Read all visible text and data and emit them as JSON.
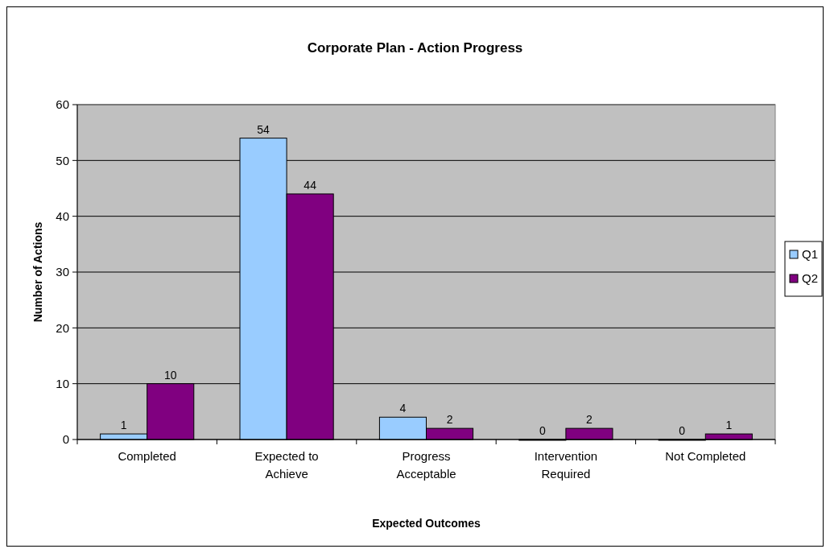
{
  "chart_data": {
    "type": "bar",
    "title": "Corporate Plan - Action Progress",
    "xlabel": "Expected Outcomes",
    "ylabel": "Number of Actions",
    "categories": [
      "Completed",
      "Expected to Achieve",
      "Progress Acceptable",
      "Intervention Required",
      "Not Completed"
    ],
    "series": [
      {
        "name": "Q1",
        "color": "#99ccff",
        "values": [
          1,
          54,
          4,
          0,
          0
        ]
      },
      {
        "name": "Q2",
        "color": "#800080",
        "values": [
          10,
          44,
          2,
          2,
          1
        ]
      }
    ],
    "ylim": [
      0,
      60
    ],
    "yticks": [
      0,
      10,
      20,
      30,
      40,
      50,
      60
    ],
    "grid": "y",
    "legend": "right",
    "data_labels": true
  }
}
